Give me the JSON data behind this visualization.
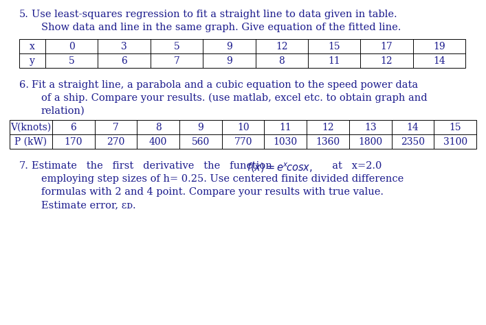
{
  "bg_color": "#ffffff",
  "table1_headers": [
    "x",
    "0",
    "3",
    "5",
    "9",
    "12",
    "15",
    "17",
    "19"
  ],
  "table1_row2": [
    "y",
    "5",
    "6",
    "7",
    "9",
    "8",
    "11",
    "12",
    "14"
  ],
  "table2_headers": [
    "V(knots)",
    "6",
    "7",
    "8",
    "9",
    "10",
    "11",
    "12",
    "13",
    "14",
    "15"
  ],
  "table2_row2": [
    "P (kW)",
    "170",
    "270",
    "400",
    "560",
    "770",
    "1030",
    "1360",
    "1800",
    "2350",
    "3100"
  ],
  "font_size_body": 10.5,
  "font_size_table": 10.0,
  "font_family": "serif",
  "text_color": "#1a1a8c"
}
